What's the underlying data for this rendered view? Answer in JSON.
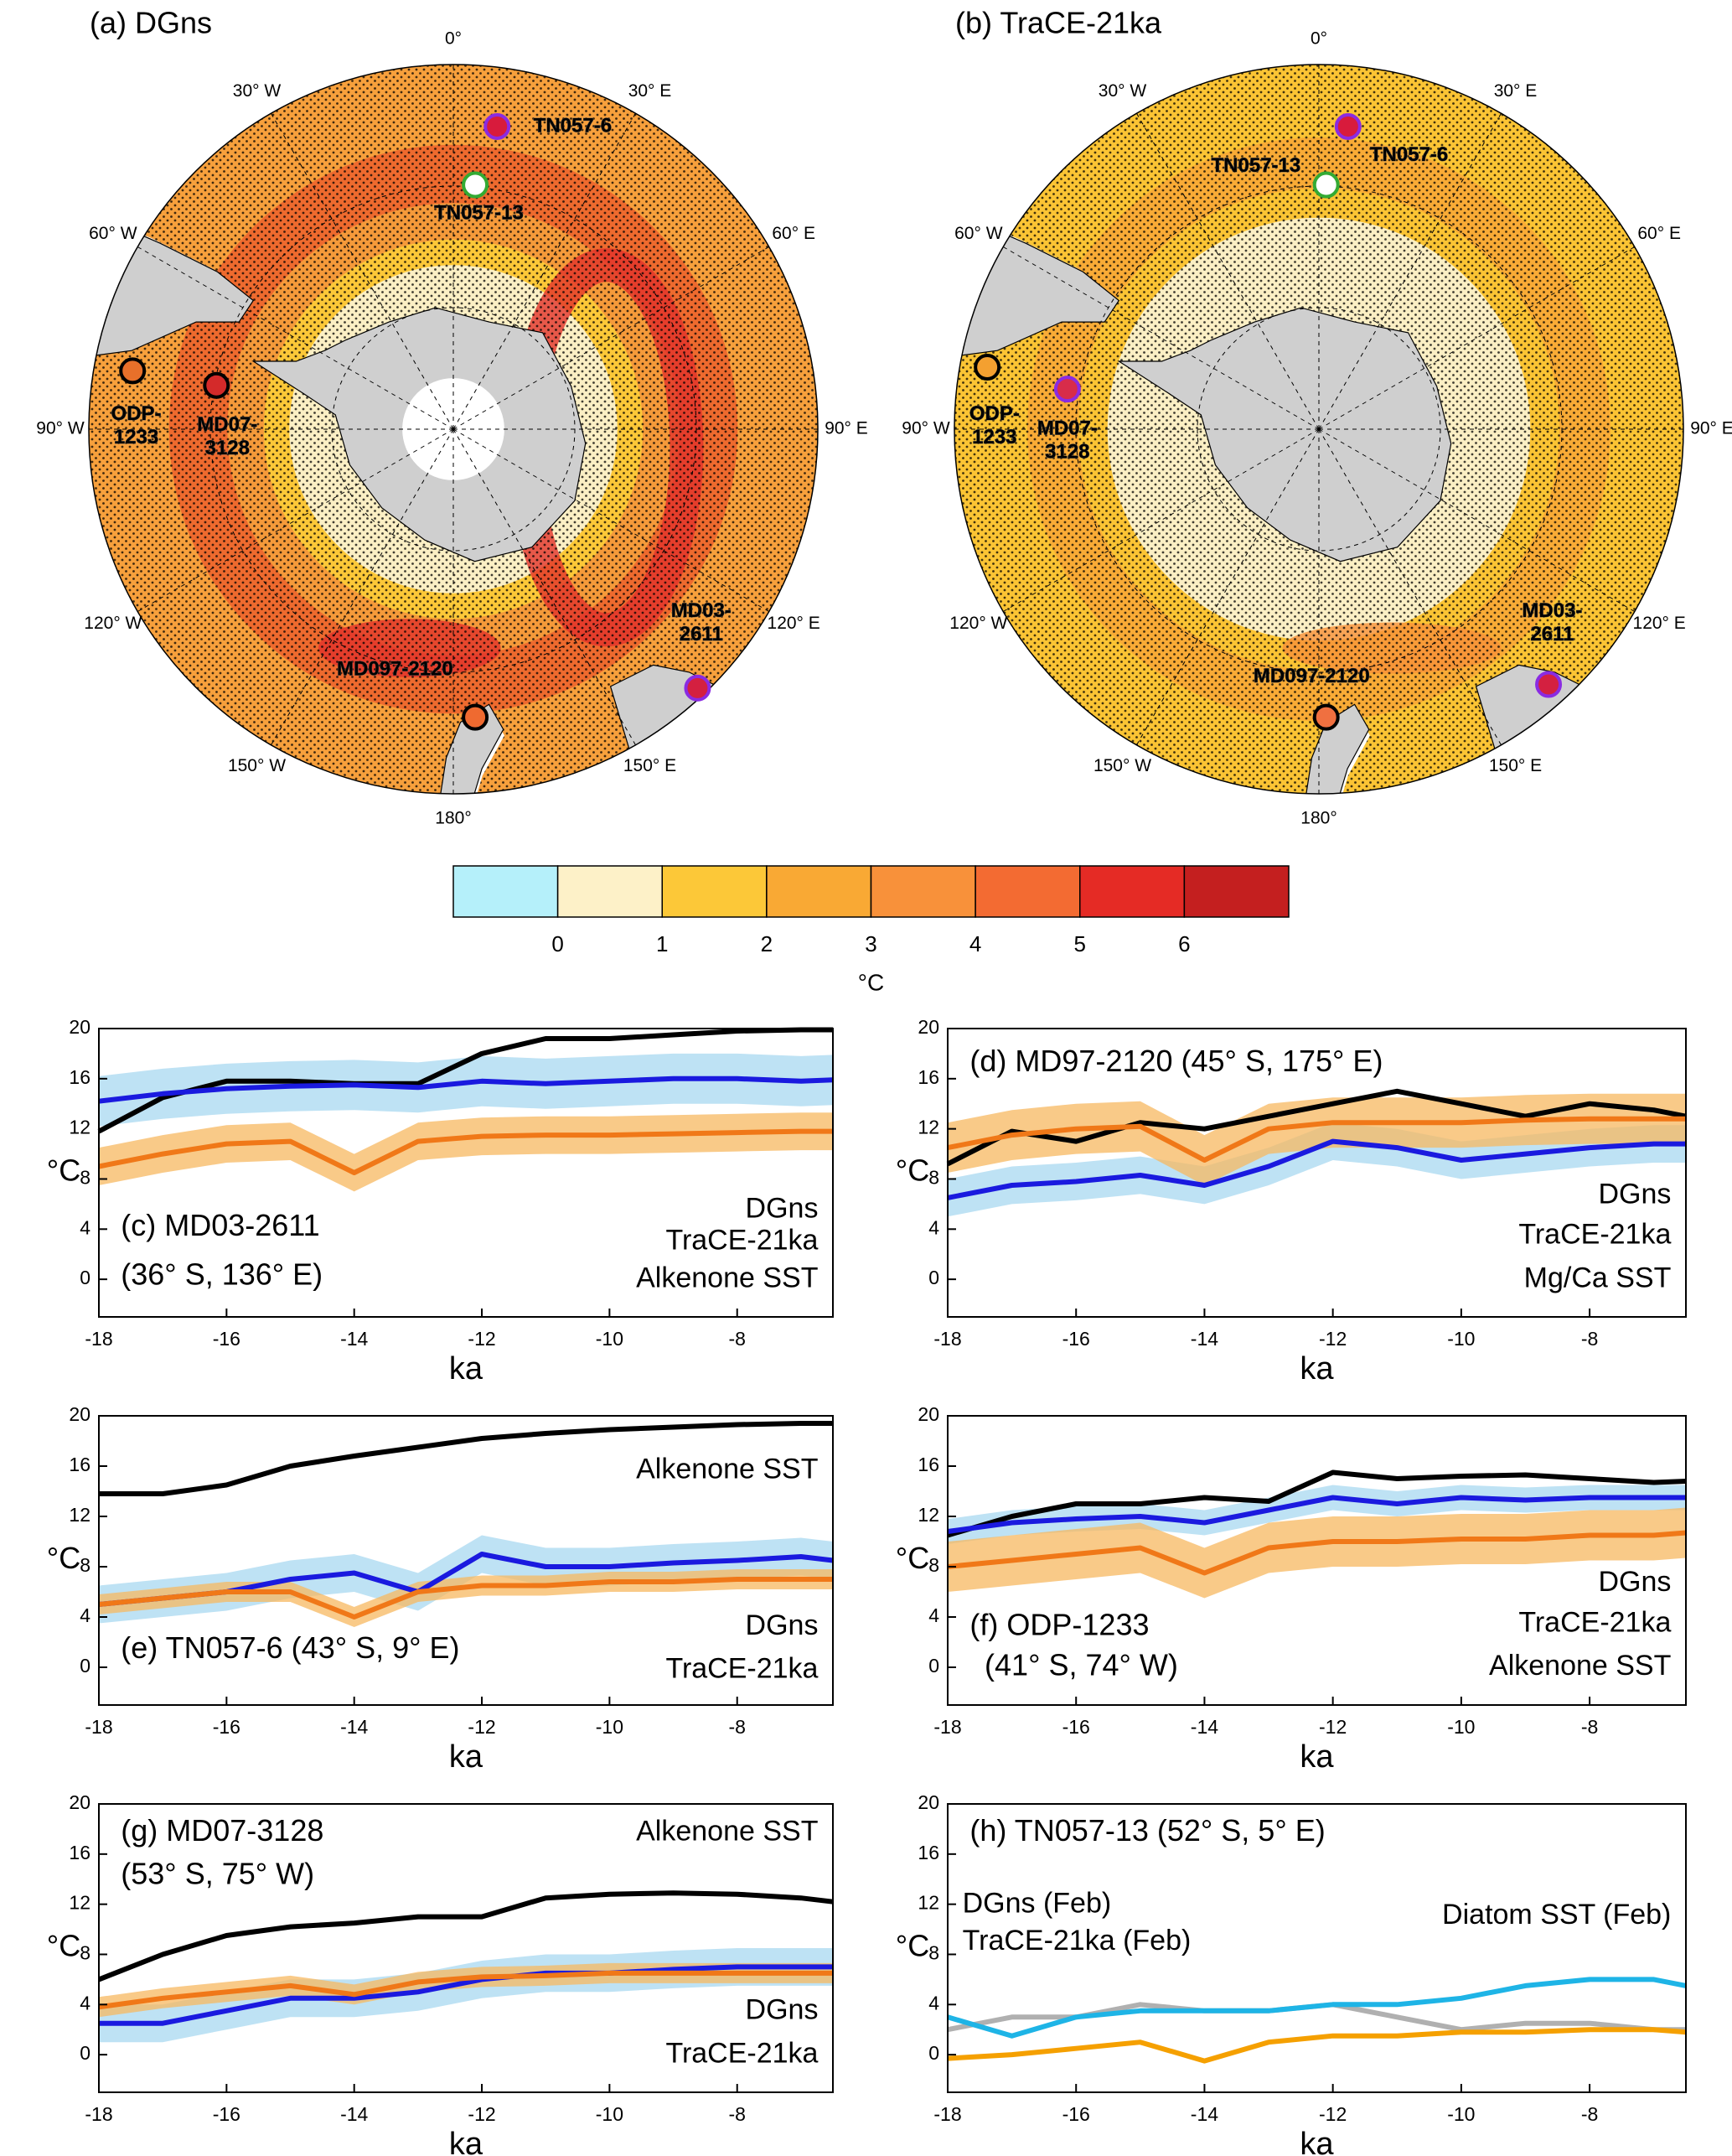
{
  "maps": [
    {
      "title": "(a) DGns",
      "sites": [
        {
          "label": [
            "TN057-6"
          ],
          "color": "#d81b3c",
          "edge": "#8a2be2"
        },
        {
          "label": [
            "TN057-13"
          ],
          "color": "#ffffff",
          "edge": "#33aa33"
        },
        {
          "label": [
            "ODP-",
            "1233"
          ],
          "color": "#e8702a",
          "edge": "#000000"
        },
        {
          "label": [
            "MD07-",
            "3128"
          ],
          "color": "#d42a2a",
          "edge": "#000000"
        },
        {
          "label": [
            "MD03-",
            "2611"
          ],
          "color": "#d42040",
          "edge": "#8a2be2"
        },
        {
          "label": [
            "MD097-2120"
          ],
          "color": "#ef6a30",
          "edge": "#000000"
        }
      ]
    },
    {
      "title": "(b) TraCE-21ka",
      "sites": [
        {
          "label": [
            "TN057-6"
          ],
          "color": "#d81b3c",
          "edge": "#8a2be2"
        },
        {
          "label": [
            "TN057-13"
          ],
          "color": "#ffffff",
          "edge": "#33aa33"
        },
        {
          "label": [
            "ODP-",
            "1233"
          ],
          "color": "#f4a030",
          "edge": "#000000"
        },
        {
          "label": [
            "MD07-",
            "3128"
          ],
          "color": "#d82c4a",
          "edge": "#8a2be2"
        },
        {
          "label": [
            "MD03-",
            "2611"
          ],
          "color": "#d42040",
          "edge": "#8a2be2"
        },
        {
          "label": [
            "MD097-2120"
          ],
          "color": "#f07040",
          "edge": "#000000"
        }
      ]
    }
  ],
  "lon_labels": [
    "0°",
    "30° E",
    "60° E",
    "90° E",
    "120° E",
    "150° E",
    "180°",
    "150° W",
    "120° W",
    "90° W",
    "60° W",
    "30° W"
  ],
  "colorbar": {
    "colors": [
      "#b5f0fa",
      "#fdf1c8",
      "#fcc838",
      "#f9a934",
      "#f8913a",
      "#f36b32",
      "#e52b25",
      "#c41f1f"
    ],
    "lim": [
      -1,
      7
    ],
    "ticks": [
      0,
      1,
      2,
      3,
      4,
      5,
      6
    ],
    "label": "°C"
  },
  "chart_data": [
    {
      "type": "line",
      "title": "(c) MD03-2611",
      "subtitle": "(36° S, 136° E)",
      "xlabel": "ka",
      "ylabel": "°C",
      "x": [
        -18,
        -17,
        -16,
        -15,
        -14,
        -13,
        -12,
        -11,
        -10,
        -9,
        -8,
        -7,
        -6.5
      ],
      "xlim": [
        -18,
        -6.5
      ],
      "xticks": [
        -18,
        -16,
        -14,
        -12,
        -10,
        -8
      ],
      "ylim": [
        -3,
        20
      ],
      "yticks": [
        0,
        4,
        8,
        12,
        16,
        20
      ],
      "series": [
        {
          "name": "DGns",
          "color": "#1a1adf",
          "band_color": "#a8d8f0",
          "values": [
            14.2,
            14.8,
            15.2,
            15.4,
            15.5,
            15.3,
            15.8,
            15.6,
            15.8,
            16,
            16,
            15.8,
            15.9
          ],
          "lower": [
            12.2,
            12.8,
            13.2,
            13.4,
            13.5,
            13.3,
            13.8,
            13.6,
            13.8,
            14,
            14,
            13.8,
            13.9
          ],
          "upper": [
            16.2,
            16.8,
            17.2,
            17.4,
            17.5,
            17.3,
            17.8,
            17.6,
            17.8,
            18,
            18,
            17.8,
            17.9
          ]
        },
        {
          "name": "TraCE-21ka",
          "color": "#f07818",
          "band_color": "#f7b860",
          "values": [
            9,
            10,
            10.8,
            11,
            8.5,
            11,
            11.4,
            11.5,
            11.5,
            11.6,
            11.7,
            11.8,
            11.8
          ],
          "lower": [
            7.5,
            8.5,
            9.3,
            9.5,
            7,
            9.5,
            9.9,
            10,
            10,
            10.1,
            10.2,
            10.3,
            10.3
          ],
          "upper": [
            10.5,
            11.5,
            12.3,
            12.5,
            10,
            12.5,
            12.9,
            13,
            13,
            13.1,
            13.2,
            13.3,
            13.3
          ]
        },
        {
          "name": "Alkenone SST",
          "color": "#000000",
          "values": [
            11.8,
            14.5,
            15.8,
            15.8,
            15.6,
            15.6,
            18,
            19.2,
            19.2,
            19.5,
            19.8,
            19.9,
            19.9
          ]
        }
      ]
    },
    {
      "type": "line",
      "title": "(d) MD97-2120 (45° S, 175° E)",
      "xlabel": "ka",
      "ylabel": "°C",
      "x": [
        -18,
        -17,
        -16,
        -15,
        -14,
        -13,
        -12,
        -11,
        -10,
        -9,
        -8,
        -7,
        -6.5
      ],
      "xlim": [
        -18,
        -6.5
      ],
      "xticks": [
        -18,
        -16,
        -14,
        -12,
        -10,
        -8
      ],
      "ylim": [
        -3,
        20
      ],
      "yticks": [
        0,
        4,
        8,
        12,
        16,
        20
      ],
      "series": [
        {
          "name": "DGns",
          "color": "#1a1adf",
          "band_color": "#a8d8f0",
          "values": [
            6.5,
            7.5,
            7.8,
            8.3,
            7.5,
            9,
            11,
            10.5,
            9.5,
            10,
            10.5,
            10.8,
            10.8
          ],
          "lower": [
            5,
            6,
            6.3,
            6.8,
            6,
            7.5,
            9.5,
            9,
            8,
            8.5,
            9,
            9.3,
            9.3
          ],
          "upper": [
            8,
            9,
            9.3,
            9.8,
            9,
            10.5,
            12.5,
            12,
            11,
            11.5,
            12,
            12.3,
            12.3
          ]
        },
        {
          "name": "TraCE-21ka",
          "color": "#f07818",
          "band_color": "#f7b860",
          "values": [
            10.5,
            11.5,
            12,
            12.2,
            9.5,
            12,
            12.5,
            12.5,
            12.5,
            12.7,
            12.8,
            12.8,
            12.8
          ],
          "lower": [
            8.5,
            9.5,
            10,
            10.2,
            7.5,
            10,
            10.5,
            10.5,
            10.5,
            10.7,
            10.8,
            10.8,
            10.8
          ],
          "upper": [
            12.5,
            13.5,
            14,
            14.2,
            11.5,
            14,
            14.5,
            14.5,
            14.5,
            14.7,
            14.8,
            14.8,
            14.8
          ]
        },
        {
          "name": "Mg/Ca SST",
          "color": "#000000",
          "values": [
            9.2,
            11.8,
            11,
            12.5,
            12,
            13,
            14,
            15,
            14,
            13,
            14,
            13.5,
            13
          ]
        }
      ]
    },
    {
      "type": "line",
      "title": "(e) TN057-6 (43° S, 9° E)",
      "xlabel": "ka",
      "ylabel": "°C",
      "x": [
        -18,
        -17,
        -16,
        -15,
        -14,
        -13,
        -12,
        -11,
        -10,
        -9,
        -8,
        -7,
        -6.5
      ],
      "xlim": [
        -18,
        -6.5
      ],
      "xticks": [
        -18,
        -16,
        -14,
        -12,
        -10,
        -8
      ],
      "ylim": [
        -3,
        20
      ],
      "yticks": [
        0,
        4,
        8,
        12,
        16,
        20
      ],
      "series": [
        {
          "name": "DGns",
          "color": "#1a1adf",
          "band_color": "#a8d8f0",
          "values": [
            5,
            5.5,
            6,
            7,
            7.5,
            6,
            9,
            8,
            8,
            8.3,
            8.5,
            8.8,
            8.5
          ],
          "lower": [
            3.5,
            4,
            4.5,
            5.5,
            6,
            4.5,
            7.5,
            6.5,
            6.5,
            6.8,
            7,
            7.3,
            7
          ],
          "upper": [
            6.5,
            7,
            7.5,
            8.5,
            9,
            7.5,
            10.5,
            9.5,
            9.5,
            9.8,
            10,
            10.3,
            10
          ]
        },
        {
          "name": "TraCE-21ka",
          "color": "#f07818",
          "band_color": "#f7b860",
          "values": [
            5,
            5.5,
            6,
            6,
            4,
            6,
            6.5,
            6.5,
            6.8,
            6.8,
            7,
            7,
            7
          ],
          "lower": [
            4.2,
            4.7,
            5.2,
            5.2,
            3.2,
            5.2,
            5.7,
            5.7,
            6,
            6,
            6.2,
            6.2,
            6.2
          ],
          "upper": [
            5.8,
            6.3,
            6.8,
            6.8,
            4.8,
            6.8,
            7.3,
            7.3,
            7.6,
            7.6,
            7.8,
            7.8,
            7.8
          ]
        },
        {
          "name": "Alkenone SST",
          "color": "#000000",
          "values": [
            13.8,
            13.8,
            14.5,
            16,
            16.8,
            17.5,
            18.2,
            18.6,
            18.9,
            19.1,
            19.3,
            19.4,
            19.4
          ]
        }
      ]
    },
    {
      "type": "line",
      "title": "(f) ODP-1233",
      "subtitle": "(41° S, 74° W)",
      "xlabel": "ka",
      "ylabel": "°C",
      "x": [
        -18,
        -17,
        -16,
        -15,
        -14,
        -13,
        -12,
        -11,
        -10,
        -9,
        -8,
        -7,
        -6.5
      ],
      "xlim": [
        -18,
        -6.5
      ],
      "xticks": [
        -18,
        -16,
        -14,
        -12,
        -10,
        -8
      ],
      "ylim": [
        -3,
        20
      ],
      "yticks": [
        0,
        4,
        8,
        12,
        16,
        20
      ],
      "series": [
        {
          "name": "DGns",
          "color": "#1a1adf",
          "band_color": "#a8d8f0",
          "values": [
            10.8,
            11.5,
            11.8,
            12,
            11.5,
            12.5,
            13.5,
            13,
            13.5,
            13.3,
            13.5,
            13.5,
            13.5
          ],
          "lower": [
            9.8,
            10.5,
            10.8,
            11,
            10.5,
            11.5,
            12.5,
            12,
            12.5,
            12.3,
            12.5,
            12.5,
            12.5
          ],
          "upper": [
            11.8,
            12.5,
            12.8,
            13,
            12.5,
            13.5,
            14.5,
            14,
            14.5,
            14.3,
            14.5,
            14.5,
            14.5
          ]
        },
        {
          "name": "TraCE-21ka",
          "color": "#f07818",
          "band_color": "#f7b860",
          "values": [
            8,
            8.5,
            9,
            9.5,
            7.5,
            9.5,
            10,
            10,
            10.2,
            10.2,
            10.5,
            10.5,
            10.7
          ],
          "lower": [
            6,
            6.5,
            7,
            7.5,
            5.5,
            7.5,
            8,
            8,
            8.2,
            8.2,
            8.5,
            8.5,
            8.7
          ],
          "upper": [
            10,
            10.5,
            11,
            11.5,
            9.5,
            11.5,
            12,
            12,
            12.2,
            12.2,
            12.5,
            12.5,
            12.7
          ]
        },
        {
          "name": "Alkenone SST",
          "color": "#000000",
          "values": [
            10.5,
            12,
            13,
            13,
            13.5,
            13.2,
            15.5,
            15,
            15.2,
            15.3,
            15,
            14.7,
            14.8
          ]
        }
      ]
    },
    {
      "type": "line",
      "title": "(g) MD07-3128",
      "subtitle": "(53° S, 75° W)",
      "xlabel": "ka",
      "ylabel": "°C",
      "x": [
        -18,
        -17,
        -16,
        -15,
        -14,
        -13,
        -12,
        -11,
        -10,
        -9,
        -8,
        -7,
        -6.5
      ],
      "xlim": [
        -18,
        -6.5
      ],
      "xticks": [
        -18,
        -16,
        -14,
        -12,
        -10,
        -8
      ],
      "ylim": [
        -3,
        20
      ],
      "yticks": [
        0,
        4,
        8,
        12,
        16,
        20
      ],
      "series": [
        {
          "name": "DGns",
          "color": "#1a1adf",
          "band_color": "#a8d8f0",
          "values": [
            2.5,
            2.5,
            3.5,
            4.5,
            4.5,
            5,
            6,
            6.5,
            6.5,
            6.8,
            7,
            7,
            7
          ],
          "lower": [
            1,
            1,
            2,
            3,
            3,
            3.5,
            4.5,
            5,
            5,
            5.3,
            5.5,
            5.5,
            5.5
          ],
          "upper": [
            4,
            4,
            5,
            6,
            6,
            6.5,
            7.5,
            8,
            8,
            8.3,
            8.5,
            8.5,
            8.5
          ]
        },
        {
          "name": "TraCE-21ka",
          "color": "#f07818",
          "band_color": "#f7b860",
          "values": [
            3.8,
            4.5,
            5,
            5.5,
            4.8,
            5.8,
            6.2,
            6.3,
            6.5,
            6.5,
            6.5,
            6.5,
            6.5
          ],
          "lower": [
            3,
            3.7,
            4.2,
            4.7,
            4,
            5,
            5.4,
            5.5,
            5.7,
            5.7,
            5.7,
            5.7,
            5.7
          ],
          "upper": [
            4.6,
            5.3,
            5.8,
            6.3,
            5.6,
            6.6,
            7,
            7.1,
            7.3,
            7.3,
            7.3,
            7.3,
            7.3
          ]
        },
        {
          "name": "Alkenone SST",
          "color": "#000000",
          "values": [
            6,
            8,
            9.5,
            10.2,
            10.5,
            11,
            11,
            12.5,
            12.8,
            12.9,
            12.8,
            12.5,
            12.2
          ]
        }
      ]
    },
    {
      "type": "line",
      "title": "(h) TN057-13 (52° S, 5° E)",
      "xlabel": "ka",
      "ylabel": "°C",
      "x": [
        -18,
        -17,
        -16,
        -15,
        -14,
        -13,
        -12,
        -11,
        -10,
        -9,
        -8,
        -7,
        -6.5
      ],
      "xlim": [
        -18,
        -6.5
      ],
      "xticks": [
        -18,
        -16,
        -14,
        -12,
        -10,
        -8
      ],
      "ylim": [
        -3,
        20
      ],
      "yticks": [
        0,
        4,
        8,
        12,
        16,
        20
      ],
      "series": [
        {
          "name": "DGns (Feb)",
          "color": "#1eb4e6",
          "values": [
            3,
            1.5,
            3,
            3.5,
            3.5,
            3.5,
            4,
            4,
            4.5,
            5.5,
            6,
            6,
            5.5
          ]
        },
        {
          "name": "TraCE-21ka (Feb)",
          "color": "#f5a000",
          "values": [
            -0.3,
            0,
            0.5,
            1,
            -0.5,
            1,
            1.5,
            1.5,
            1.8,
            1.8,
            2,
            2,
            1.8
          ]
        },
        {
          "name": "Diatom SST (Feb)",
          "color": "#b0b0b0",
          "values": [
            2,
            3,
            3,
            4,
            3.5,
            3.5,
            4,
            3,
            2,
            2.5,
            2.5,
            2,
            2
          ]
        }
      ]
    }
  ]
}
